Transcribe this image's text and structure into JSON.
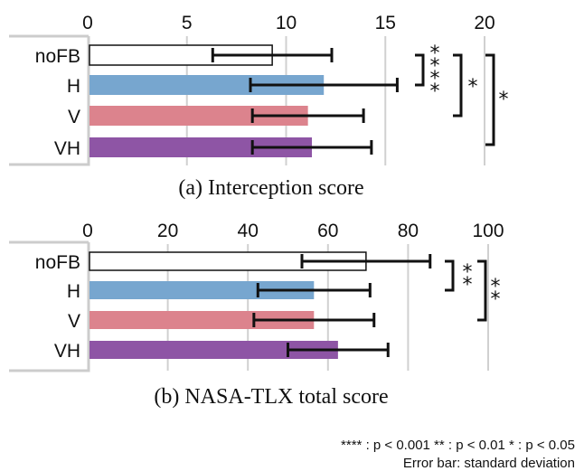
{
  "chart_data": [
    {
      "type": "bar",
      "orientation": "horizontal",
      "title": "(a) Interception score",
      "categories": [
        "noFB",
        "H",
        "V",
        "VH"
      ],
      "values": [
        9.3,
        11.9,
        11.1,
        11.3
      ],
      "errors": [
        3.0,
        3.7,
        2.8,
        3.0
      ],
      "xlim": [
        0,
        20
      ],
      "ticks": [
        0,
        5,
        10,
        15,
        20
      ],
      "colors": [
        "#ffffff",
        "#77a6cf",
        "#dc838d",
        "#8e55a5"
      ],
      "significance": [
        {
          "from": "noFB",
          "to": "H",
          "label": "****"
        },
        {
          "from": "noFB",
          "to": "V",
          "label": "*"
        },
        {
          "from": "noFB",
          "to": "VH",
          "label": "*"
        }
      ]
    },
    {
      "type": "bar",
      "orientation": "horizontal",
      "title": "(b) NASA-TLX total score",
      "categories": [
        "noFB",
        "H",
        "V",
        "VH"
      ],
      "values": [
        69.5,
        56.5,
        56.5,
        62.5
      ],
      "errors": [
        16.0,
        14.0,
        15.0,
        12.5
      ],
      "xlim": [
        0,
        100
      ],
      "ticks": [
        0,
        20,
        40,
        60,
        80,
        100
      ],
      "colors": [
        "#ffffff",
        "#77a6cf",
        "#dc838d",
        "#8e55a5"
      ],
      "significance": [
        {
          "from": "noFB",
          "to": "H",
          "label": "**"
        },
        {
          "from": "noFB",
          "to": "V",
          "label": "**"
        }
      ]
    }
  ],
  "legend": {
    "significance_note": "**** : p < 0.001  ** : p < 0.01 * : p < 0.05",
    "error_note": "Error bar: standard deviation"
  }
}
